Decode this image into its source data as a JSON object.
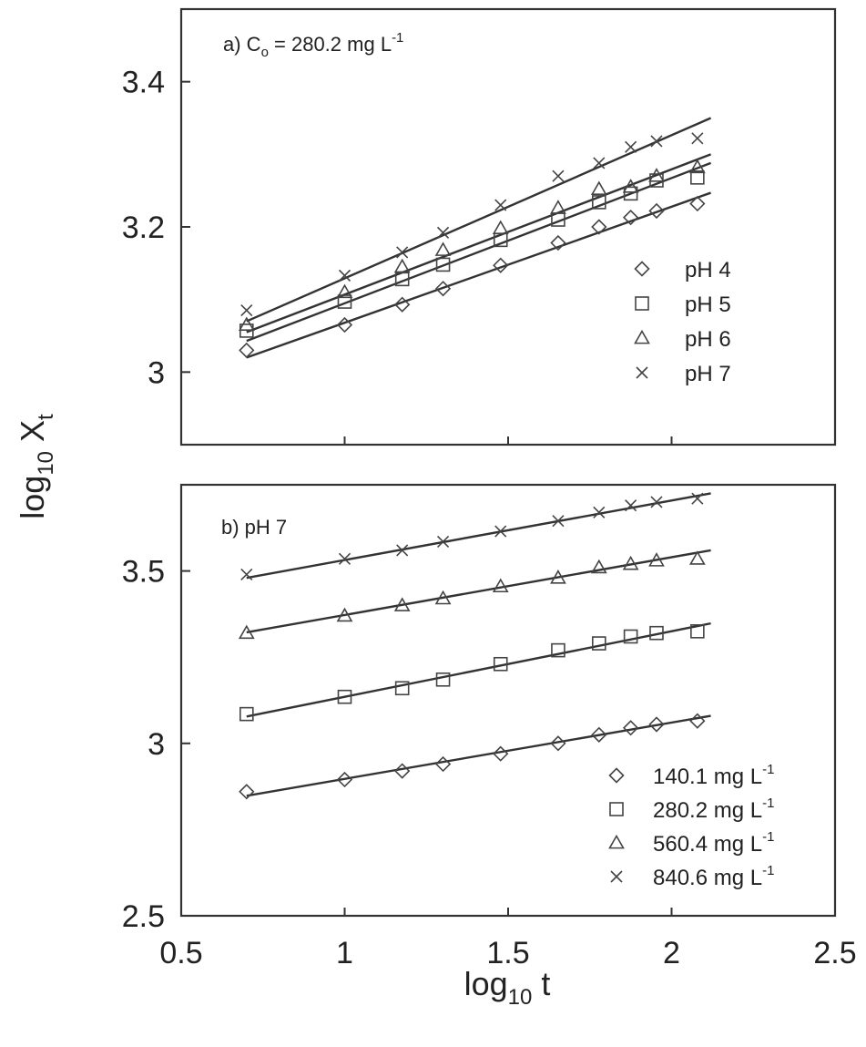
{
  "chart_data": [
    {
      "panel": "a",
      "type": "scatter",
      "title_prefix": "a)  C",
      "title_sub": "o",
      "title_mid": " = 280.2 mg L",
      "title_sup": "-1",
      "x": [
        0.7,
        1.0,
        1.176,
        1.301,
        1.477,
        1.653,
        1.778,
        1.875,
        1.954,
        2.079
      ],
      "xlim": [
        0.5,
        2.5
      ],
      "ylim": [
        2.9,
        3.5
      ],
      "y_ticks": [
        3.0,
        3.2,
        3.4
      ],
      "y_tick_labels": [
        "3",
        "3.2",
        "3.4"
      ],
      "x_ticks": [
        0.5,
        1.0,
        1.5,
        2.0,
        2.5
      ],
      "legend_position": "right",
      "series": [
        {
          "name": "pH 4",
          "marker": "diamond",
          "y": [
            3.03,
            3.065,
            3.093,
            3.115,
            3.147,
            3.178,
            3.2,
            3.213,
            3.222,
            3.232
          ],
          "fit": [
            [
              0.7,
              3.02
            ],
            [
              2.12,
              3.247
            ]
          ]
        },
        {
          "name": "pH 5",
          "marker": "square",
          "y": [
            3.057,
            3.097,
            3.128,
            3.148,
            3.182,
            3.21,
            3.234,
            3.246,
            3.264,
            3.268
          ],
          "fit": [
            [
              0.7,
              3.043
            ],
            [
              2.12,
              3.288
            ]
          ]
        },
        {
          "name": "pH 6",
          "marker": "triangle",
          "y": [
            3.065,
            3.11,
            3.145,
            3.168,
            3.198,
            3.226,
            3.252,
            3.255,
            3.27,
            3.282
          ],
          "fit": [
            [
              0.7,
              3.055
            ],
            [
              2.12,
              3.3
            ]
          ]
        },
        {
          "name": "pH 7",
          "marker": "x",
          "y": [
            3.085,
            3.133,
            3.165,
            3.192,
            3.23,
            3.27,
            3.288,
            3.31,
            3.318,
            3.322
          ],
          "fit": [
            [
              0.7,
              3.07
            ],
            [
              2.12,
              3.35
            ]
          ]
        }
      ]
    },
    {
      "panel": "b",
      "type": "scatter",
      "title": "b) pH 7",
      "x": [
        0.7,
        1.0,
        1.176,
        1.301,
        1.477,
        1.653,
        1.778,
        1.875,
        1.954,
        2.079
      ],
      "xlim": [
        0.5,
        2.5
      ],
      "ylim": [
        2.5,
        3.75
      ],
      "y_ticks": [
        2.5,
        3.0,
        3.5
      ],
      "y_tick_labels": [
        "2.5",
        "3",
        "3.5"
      ],
      "x_ticks": [
        0.5,
        1.0,
        1.5,
        2.0,
        2.5
      ],
      "x_tick_labels": [
        "0.5",
        "1",
        "1.5",
        "2",
        "2.5"
      ],
      "legend_position": "bottom-right",
      "series": [
        {
          "name": "140.1 mg L",
          "name_sup": "-1",
          "marker": "diamond",
          "y": [
            2.86,
            2.895,
            2.92,
            2.94,
            2.97,
            3.0,
            3.025,
            3.045,
            3.055,
            3.065
          ],
          "fit": [
            [
              0.7,
              2.848
            ],
            [
              2.12,
              3.08
            ]
          ]
        },
        {
          "name": "280.2 mg L",
          "name_sup": "-1",
          "marker": "square",
          "y": [
            3.085,
            3.135,
            3.16,
            3.185,
            3.23,
            3.27,
            3.29,
            3.31,
            3.32,
            3.325
          ],
          "fit": [
            [
              0.7,
              3.078
            ],
            [
              2.12,
              3.348
            ]
          ]
        },
        {
          "name": "560.4 mg L",
          "name_sup": "-1",
          "marker": "triangle",
          "y": [
            3.32,
            3.37,
            3.4,
            3.42,
            3.455,
            3.48,
            3.51,
            3.52,
            3.53,
            3.535
          ],
          "fit": [
            [
              0.7,
              3.322
            ],
            [
              2.12,
              3.56
            ]
          ]
        },
        {
          "name": "840.6 mg L",
          "name_sup": "-1",
          "marker": "x",
          "y": [
            3.49,
            3.535,
            3.56,
            3.585,
            3.615,
            3.645,
            3.67,
            3.69,
            3.7,
            3.71
          ],
          "fit": [
            [
              0.7,
              3.48
            ],
            [
              2.12,
              3.725
            ]
          ]
        }
      ]
    }
  ],
  "axes": {
    "xlabel_main": "log",
    "xlabel_sub": "10",
    "xlabel_tail": " t",
    "ylabel_main": "log",
    "ylabel_sub": "10",
    "ylabel_tail": " X",
    "ylabel_tail_sub": "t"
  }
}
